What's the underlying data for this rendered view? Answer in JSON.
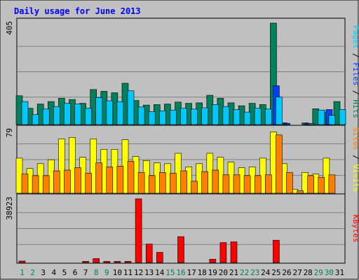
{
  "chart_data": [
    {
      "title": "Daily usage for June 2013",
      "type": "bar",
      "categories": [
        "1",
        "2",
        "3",
        "4",
        "5",
        "6",
        "7",
        "8",
        "9",
        "10",
        "11",
        "12",
        "13",
        "14",
        "15",
        "16",
        "17",
        "18",
        "19",
        "20",
        "21",
        "22",
        "23",
        "24",
        "25",
        "26",
        "27",
        "28",
        "29",
        "30",
        "31"
      ],
      "weekend_days": [
        "1",
        "2",
        "8",
        "9",
        "15",
        "16",
        "22",
        "23",
        "29",
        "30"
      ],
      "ymax_label": "405",
      "ylim": [
        0,
        405
      ],
      "grid": true,
      "legend": [
        "Pages",
        "Files",
        "Hits"
      ],
      "legend_separator": " / ",
      "series": [
        {
          "name": "Hits",
          "color": "#00805c",
          "values": [
            115,
            65,
            82,
            92,
            105,
            100,
            85,
            140,
            133,
            127,
            165,
            96,
            78,
            80,
            82,
            90,
            85,
            87,
            117,
            105,
            87,
            75,
            85,
            80,
            405,
            7,
            0,
            7,
            63,
            50,
            92
          ]
        },
        {
          "name": "Files",
          "color": "#0040ff",
          "values": [
            0,
            0,
            0,
            0,
            0,
            0,
            0,
            0,
            0,
            0,
            0,
            0,
            0,
            0,
            0,
            0,
            0,
            0,
            0,
            0,
            0,
            0,
            0,
            0,
            155,
            5,
            0,
            5,
            0,
            60,
            0
          ]
        },
        {
          "name": "Pages",
          "color": "#00c8ff",
          "values": [
            92,
            40,
            62,
            72,
            85,
            82,
            65,
            108,
            95,
            92,
            135,
            70,
            52,
            55,
            58,
            65,
            62,
            67,
            80,
            72,
            60,
            50,
            65,
            62,
            110,
            0,
            0,
            4,
            58,
            37,
            60
          ]
        }
      ]
    },
    {
      "type": "bar",
      "ymax_label": "79",
      "ylim": [
        0,
        79
      ],
      "grid": true,
      "legend": [
        "Sites",
        "Visits"
      ],
      "legend_separator": " / ",
      "series": [
        {
          "name": "Visits",
          "color": "#ffff00",
          "values": [
            44,
            31,
            37,
            42,
            68,
            70,
            45,
            68,
            55,
            55,
            67,
            46,
            41,
            38,
            37,
            50,
            33,
            37,
            50,
            45,
            39,
            32,
            33,
            44,
            77,
            37,
            5,
            26,
            24,
            44,
            0
          ]
        },
        {
          "name": "Sites",
          "color": "#ff8000",
          "values": [
            24,
            22,
            22,
            28,
            29,
            32,
            25,
            38,
            33,
            34,
            40,
            26,
            22,
            26,
            25,
            28,
            15,
            27,
            29,
            23,
            23,
            22,
            22,
            23,
            73,
            26,
            3,
            22,
            20,
            23,
            0
          ]
        }
      ]
    },
    {
      "type": "bar",
      "ymax_label": "38923",
      "ylim": [
        0,
        38923
      ],
      "grid": true,
      "legend": [
        "KBytes"
      ],
      "legend_separator": "",
      "series": [
        {
          "name": "KBytes",
          "color": "#ff0000",
          "values": [
            900,
            0,
            0,
            0,
            0,
            0,
            700,
            2400,
            700,
            700,
            700,
            38923,
            11300,
            6200,
            0,
            15800,
            0,
            0,
            2000,
            12200,
            12600,
            0,
            0,
            0,
            13600,
            0,
            0,
            0,
            0,
            0,
            0
          ]
        }
      ]
    }
  ],
  "colors": {
    "background": "#c0c0c0",
    "plot_background": "#c0c0c0",
    "grid": "#7f7f7f",
    "title": "#0000ff",
    "tick_label": "#000000",
    "weekend_label": "#00805c",
    "bar_outline": "#000000"
  }
}
